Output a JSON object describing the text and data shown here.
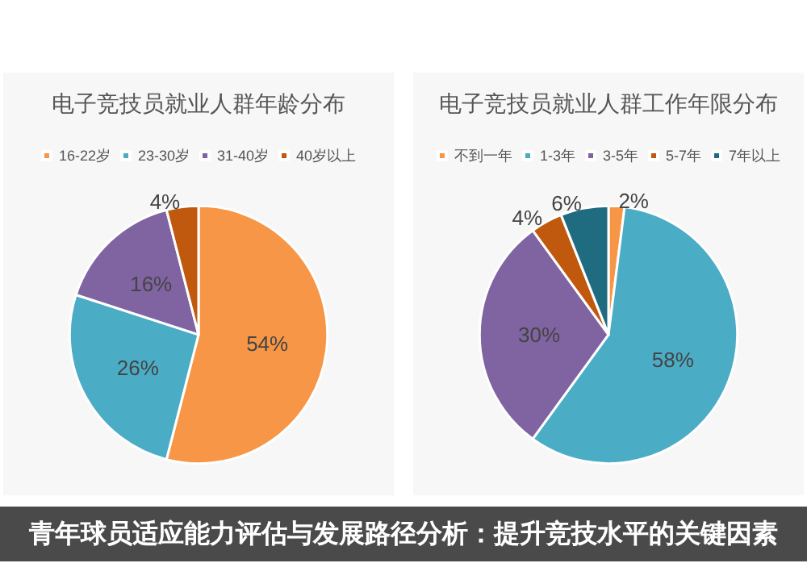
{
  "chart_data": [
    {
      "type": "pie",
      "title": "电子竞技员就业人群年龄分布",
      "categories": [
        "16-22岁",
        "23-30岁",
        "31-40岁",
        "40岁以上"
      ],
      "values": [
        54,
        26,
        16,
        4
      ],
      "value_labels": [
        "54%",
        "26%",
        "16%",
        "4%"
      ],
      "colors": [
        "#f79646",
        "#4bacc6",
        "#8064a2",
        "#c0590e"
      ],
      "legend": "top",
      "annotations": [
        "青年球员适应能力评估与发展路径分析：提升竞技水平的关键因素"
      ]
    },
    {
      "type": "pie",
      "title": "电子竞技员就业人群工作年限分布",
      "categories": [
        "不到一年",
        "1-3年",
        "3-5年",
        "5-7年",
        "7年以上"
      ],
      "values": [
        2,
        58,
        30,
        4,
        6
      ],
      "value_labels": [
        "2%",
        "58%",
        "30%",
        "4%",
        "6%"
      ],
      "colors": [
        "#f79646",
        "#4bacc6",
        "#8064a2",
        "#c0590e",
        "#1f6b80"
      ],
      "legend": "top"
    }
  ]
}
